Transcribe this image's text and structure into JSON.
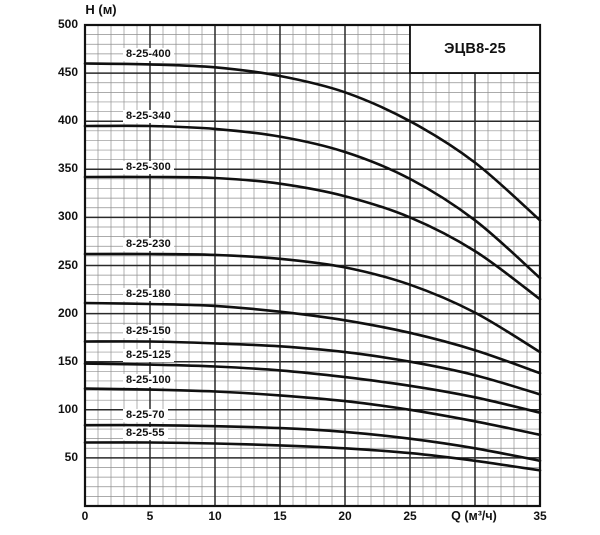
{
  "title_box": {
    "label": "ЭЦВ8-25"
  },
  "y_axis": {
    "title": "Н (м)",
    "ticks": [
      {
        "value": 500,
        "label": "500"
      },
      {
        "value": 450,
        "label": "450"
      },
      {
        "value": 400,
        "label": "400"
      },
      {
        "value": 350,
        "label": "350"
      },
      {
        "value": 300,
        "label": "300"
      },
      {
        "value": 250,
        "label": "250"
      },
      {
        "value": 200,
        "label": "200"
      },
      {
        "value": 150,
        "label": "150"
      },
      {
        "value": 100,
        "label": "100"
      },
      {
        "value": 50,
        "label": "50"
      }
    ]
  },
  "x_axis": {
    "title": "Q (м³/ч)",
    "title_position": 30,
    "ticks": [
      {
        "value": 0,
        "label": "0"
      },
      {
        "value": 5,
        "label": "5"
      },
      {
        "value": 10,
        "label": "10"
      },
      {
        "value": 15,
        "label": "15"
      },
      {
        "value": 20,
        "label": "20"
      },
      {
        "value": 25,
        "label": "25"
      },
      {
        "value": 35,
        "label": "35"
      }
    ]
  },
  "chart_data": {
    "type": "line",
    "title": "ЭЦВ8-25",
    "xlabel": "Q (м³/ч)",
    "ylabel": "Н (м)",
    "xlim": [
      0,
      35
    ],
    "ylim": [
      0,
      500
    ],
    "x_major_step": 5,
    "x_minor_step": 1,
    "y_major_step": 50,
    "y_minor_step": 10,
    "grid": "minor+major",
    "legend_position": "labels-on-curves",
    "x": [
      0,
      5,
      10,
      15,
      20,
      25,
      30,
      35
    ],
    "series": [
      {
        "name": "8-25-400",
        "values": [
          460,
          459,
          456,
          447,
          430,
          400,
          357,
          297
        ]
      },
      {
        "name": "8-25-340",
        "values": [
          395,
          395,
          392,
          384,
          368,
          340,
          297,
          237
        ]
      },
      {
        "name": "8-25-300",
        "values": [
          342,
          342,
          341,
          335,
          322,
          300,
          265,
          215
        ]
      },
      {
        "name": "8-25-230",
        "values": [
          262,
          262,
          261,
          257,
          248,
          230,
          201,
          160
        ]
      },
      {
        "name": "8-25-180",
        "values": [
          211,
          210,
          208,
          202,
          193,
          180,
          162,
          138
        ]
      },
      {
        "name": "8-25-150",
        "values": [
          171,
          171,
          169,
          166,
          160,
          150,
          136,
          116
        ]
      },
      {
        "name": "8-25-125",
        "values": [
          148,
          147,
          145,
          141,
          134,
          125,
          113,
          97
        ]
      },
      {
        "name": "8-25-100",
        "values": [
          122,
          121,
          119,
          115,
          109,
          100,
          88,
          74
        ]
      },
      {
        "name": "8-25-70",
        "values": [
          84,
          84,
          83,
          81,
          77,
          70,
          60,
          47
        ]
      },
      {
        "name": "8-25-55",
        "values": [
          66,
          66,
          65,
          63,
          60,
          55,
          47,
          37
        ]
      }
    ]
  },
  "colors": {
    "background": "#ffffff",
    "plot_fill": "#ffffff",
    "grid_minor": "#8f8f8f",
    "grid_major": "#2a2a2a",
    "axis_border": "#111111",
    "curve": "#101010",
    "text": "#111111",
    "title_box_fill": "#ffffff",
    "title_box_border": "#111111"
  }
}
